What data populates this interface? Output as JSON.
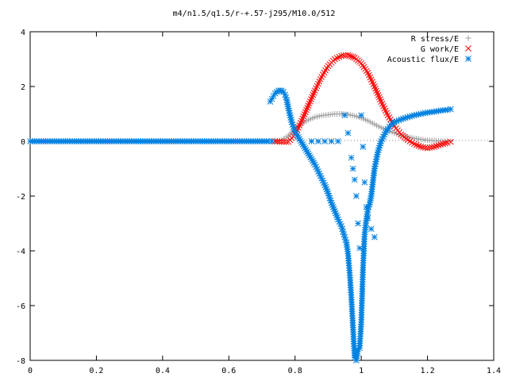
{
  "chart_data": {
    "type": "scatter",
    "title": "m4/n1.5/q1.5/r-+.57-j295/M10.0/512",
    "xlabel": "",
    "ylabel": "",
    "xlim": [
      0,
      1.4
    ],
    "ylim": [
      -8,
      4
    ],
    "x_ticks": [
      "0",
      "0.2",
      "0.4",
      "0.6",
      "0.8",
      "1",
      "1.2",
      "1.4"
    ],
    "y_ticks": [
      "4",
      "2",
      "0",
      "-2",
      "-4",
      "-6",
      "-8"
    ],
    "x_tick_values": [
      0,
      0.2,
      0.4,
      0.6,
      0.8,
      1.0,
      1.2,
      1.4
    ],
    "y_tick_values": [
      4,
      2,
      0,
      -2,
      -4,
      -6,
      -8
    ],
    "grid": false,
    "legend_position": "top-right",
    "series": [
      {
        "name": "R stress/E",
        "marker": "plus",
        "color": "#a0a0a0",
        "x": [
          0.74,
          0.76,
          0.78,
          0.8,
          0.82,
          0.84,
          0.86,
          0.88,
          0.9,
          0.92,
          0.94,
          0.96,
          0.98,
          1.0,
          1.02,
          1.04,
          1.06,
          1.08,
          1.1,
          1.12,
          1.14,
          1.16,
          1.18,
          1.2,
          1.22,
          1.24,
          1.26,
          1.27
        ],
        "y": [
          0.0,
          0.05,
          0.2,
          0.45,
          0.65,
          0.78,
          0.88,
          0.94,
          0.97,
          1.0,
          1.0,
          0.98,
          0.93,
          0.85,
          0.75,
          0.62,
          0.5,
          0.4,
          0.3,
          0.22,
          0.16,
          0.11,
          0.07,
          0.04,
          0.02,
          0.01,
          0.0,
          0.0
        ]
      },
      {
        "name": "G work/E",
        "marker": "cross",
        "color": "#ff0000",
        "x": [
          0.74,
          0.76,
          0.78,
          0.8,
          0.82,
          0.84,
          0.86,
          0.88,
          0.9,
          0.92,
          0.94,
          0.96,
          0.97,
          0.98,
          1.0,
          1.02,
          1.04,
          1.06,
          1.08,
          1.1,
          1.12,
          1.14,
          1.16,
          1.18,
          1.2,
          1.22,
          1.24,
          1.26,
          1.27
        ],
        "y": [
          0.0,
          -0.02,
          -0.02,
          0.25,
          0.75,
          1.3,
          1.85,
          2.35,
          2.75,
          3.0,
          3.12,
          3.15,
          3.1,
          3.05,
          2.85,
          2.5,
          2.0,
          1.45,
          0.95,
          0.55,
          0.25,
          0.05,
          -0.1,
          -0.2,
          -0.25,
          -0.2,
          -0.12,
          -0.05,
          -0.02
        ]
      },
      {
        "name": "Acoustic flux/E",
        "marker": "star",
        "color": "#0080e0",
        "x": [
          0.725,
          0.73,
          0.735,
          0.74,
          0.745,
          0.75,
          0.755,
          0.76,
          0.765,
          0.77,
          0.775,
          0.78,
          0.79,
          0.8,
          0.81,
          0.82,
          0.83,
          0.84,
          0.85,
          0.86,
          0.87,
          0.88,
          0.89,
          0.9,
          0.91,
          0.92,
          0.93,
          0.94,
          0.945,
          0.95,
          0.955,
          0.96,
          0.965,
          0.97,
          0.975,
          0.98,
          0.985,
          0.99,
          0.995,
          1.0,
          1.005,
          1.01,
          1.015,
          1.02,
          1.025,
          1.03,
          1.035,
          1.04,
          1.05,
          1.06,
          1.07,
          1.08,
          1.09,
          1.1,
          1.12,
          1.14,
          1.16,
          1.18,
          1.2,
          1.22,
          1.24,
          1.26,
          1.27
        ],
        "y": [
          1.45,
          1.55,
          1.65,
          1.75,
          1.8,
          1.85,
          1.85,
          1.85,
          1.8,
          1.7,
          1.5,
          1.2,
          0.7,
          0.35,
          0.15,
          -0.05,
          -0.25,
          -0.45,
          -0.65,
          -0.85,
          -1.1,
          -1.35,
          -1.6,
          -1.9,
          -2.25,
          -2.55,
          -2.85,
          -3.1,
          -3.3,
          -3.5,
          -3.7,
          -4.1,
          -4.8,
          -5.7,
          -6.8,
          -7.9,
          -8.0,
          -7.6,
          -7.55,
          -6.6,
          -4.7,
          -3.4,
          -2.9,
          -2.5,
          -2.3,
          -2.0,
          -1.5,
          -1.0,
          -0.4,
          0.0,
          0.25,
          0.45,
          0.6,
          0.7,
          0.8,
          0.88,
          0.95,
          1.0,
          1.05,
          1.08,
          1.12,
          1.15,
          1.17
        ]
      },
      {
        "name": "",
        "marker": "star",
        "color": "#0080e0",
        "x": [
          0.85,
          0.87,
          0.89,
          0.91,
          0.93,
          0.95,
          0.96,
          0.97,
          0.975,
          0.98,
          0.985,
          0.99,
          0.995,
          1.0,
          1.005,
          1.01,
          1.015,
          1.02,
          1.03,
          1.04
        ],
        "y": [
          0.0,
          0.0,
          0.0,
          0.0,
          0.0,
          0.95,
          0.3,
          -0.6,
          -1.0,
          -1.4,
          -2.0,
          -3.0,
          -3.9,
          0.95,
          -0.2,
          -1.5,
          -2.4,
          -2.8,
          -3.2,
          -3.5
        ]
      },
      {
        "name": "",
        "marker": "star",
        "color": "#0080e0",
        "x": [
          0.0,
          0.02,
          0.04,
          0.06,
          0.08,
          0.1,
          0.12,
          0.14,
          0.16,
          0.18,
          0.2,
          0.22,
          0.24,
          0.26,
          0.28,
          0.3,
          0.32,
          0.34,
          0.36,
          0.38,
          0.4,
          0.42,
          0.44,
          0.46,
          0.48,
          0.5,
          0.52,
          0.54,
          0.56,
          0.58,
          0.6,
          0.62,
          0.64,
          0.66,
          0.68,
          0.7,
          0.72,
          0.73
        ],
        "y": [
          0.0,
          0.0,
          0.0,
          0.0,
          0.0,
          0.0,
          0.0,
          0.0,
          0.0,
          0.0,
          0.0,
          0.0,
          0.0,
          0.0,
          0.0,
          0.0,
          0.0,
          0.0,
          0.0,
          0.0,
          0.0,
          0.0,
          0.0,
          0.0,
          0.0,
          0.0,
          0.0,
          0.0,
          0.0,
          0.0,
          0.0,
          0.0,
          0.0,
          0.0,
          0.0,
          0.0,
          0.0,
          0.0
        ]
      }
    ]
  }
}
